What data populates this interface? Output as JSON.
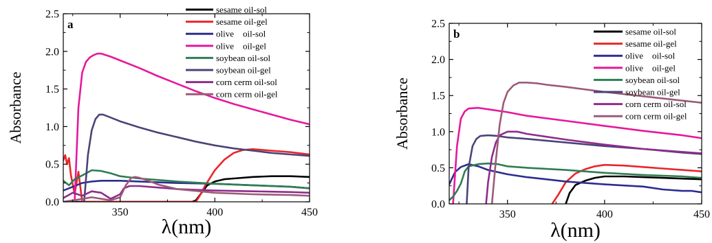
{
  "chart_data": [
    {
      "type": "line",
      "panel_label": "a",
      "xlabel": "λ(nm)",
      "ylabel": "Absorbance",
      "xlim": [
        320,
        450
      ],
      "ylim": [
        0.0,
        2.5
      ],
      "xticks": [
        350,
        400,
        450
      ],
      "yticks": [
        0.0,
        0.5,
        1.0,
        1.5,
        2.0,
        2.5
      ],
      "ytick_labels": [
        "0.0",
        "0.5",
        "1.0",
        "1.5",
        "2.0",
        "2.5"
      ],
      "grid": false,
      "legend_position": "top-right",
      "series": [
        {
          "name": "sesame oil-sol",
          "color": "#000000",
          "x": [
            320,
            388,
            390,
            393,
            396,
            400,
            405,
            410,
            420,
            430,
            440,
            450
          ],
          "y": [
            0,
            0,
            0.02,
            0.12,
            0.22,
            0.27,
            0.3,
            0.31,
            0.33,
            0.34,
            0.34,
            0.33
          ]
        },
        {
          "name": "sesame oil-gel",
          "color": "#e8262b",
          "x": [
            320,
            321,
            322,
            323,
            324,
            326,
            328,
            330,
            390,
            392,
            395,
            400,
            405,
            410,
            415,
            420,
            430,
            440,
            450
          ],
          "y": [
            0.55,
            0.62,
            0.5,
            0.58,
            0.36,
            0.1,
            0.4,
            0.0,
            0.0,
            0.08,
            0.22,
            0.42,
            0.56,
            0.65,
            0.69,
            0.7,
            0.68,
            0.66,
            0.63
          ]
        },
        {
          "name": "olive    oil-sol",
          "color": "#2b2d8e",
          "x": [
            320,
            325,
            330,
            335,
            340,
            350,
            360,
            380,
            400,
            420,
            440,
            450
          ],
          "y": [
            0.15,
            0.2,
            0.25,
            0.27,
            0.28,
            0.28,
            0.27,
            0.25,
            0.24,
            0.22,
            0.2,
            0.18
          ]
        },
        {
          "name": "olive    oil-gel",
          "color": "#e6189b",
          "x": [
            326,
            328,
            330,
            332,
            334,
            336,
            338,
            340,
            345,
            350,
            360,
            370,
            380,
            390,
            400,
            410,
            420,
            430,
            440,
            450
          ],
          "y": [
            0.0,
            1.25,
            1.72,
            1.86,
            1.92,
            1.95,
            1.97,
            1.97,
            1.93,
            1.88,
            1.78,
            1.67,
            1.57,
            1.47,
            1.38,
            1.3,
            1.23,
            1.16,
            1.09,
            1.03
          ]
        },
        {
          "name": "soybean oil-sol",
          "color": "#2f7d53",
          "x": [
            320,
            323,
            326,
            330,
            335,
            340,
            345,
            350,
            360,
            370,
            380,
            400,
            420,
            440,
            450
          ],
          "y": [
            0.28,
            0.22,
            0.3,
            0.35,
            0.42,
            0.41,
            0.38,
            0.34,
            0.31,
            0.29,
            0.27,
            0.24,
            0.22,
            0.2,
            0.18
          ]
        },
        {
          "name": "soybean oil-gel",
          "color": "#4b4377",
          "x": [
            331,
            333,
            335,
            337,
            339,
            341,
            345,
            350,
            360,
            370,
            380,
            390,
            400,
            410,
            420,
            430,
            440,
            450
          ],
          "y": [
            0.0,
            0.62,
            0.95,
            1.1,
            1.16,
            1.16,
            1.12,
            1.07,
            0.99,
            0.92,
            0.86,
            0.8,
            0.75,
            0.71,
            0.68,
            0.65,
            0.63,
            0.61
          ]
        },
        {
          "name": "corn cerm oil-sol",
          "color": "#8e2c8d",
          "x": [
            320,
            325,
            330,
            335,
            340,
            345,
            350,
            352,
            355,
            360,
            370,
            380,
            400,
            420,
            440,
            450
          ],
          "y": [
            0.05,
            0.12,
            0.08,
            0.14,
            0.12,
            0.04,
            0.1,
            0.18,
            0.21,
            0.21,
            0.19,
            0.17,
            0.15,
            0.14,
            0.13,
            0.12
          ]
        },
        {
          "name": "corn cerm oil-gel",
          "color": "#9c5a78",
          "x": [
            320,
            328,
            335,
            345,
            350,
            353,
            356,
            358,
            360,
            365,
            370,
            380,
            400,
            420,
            440,
            450
          ],
          "y": [
            0.0,
            0.03,
            0.06,
            0.02,
            0.06,
            0.22,
            0.32,
            0.33,
            0.32,
            0.28,
            0.23,
            0.17,
            0.12,
            0.1,
            0.09,
            0.08
          ]
        }
      ]
    },
    {
      "type": "line",
      "panel_label": "b",
      "xlabel": "λ(nm)",
      "ylabel": "Absorbance",
      "xlim": [
        320,
        450
      ],
      "ylim": [
        0.0,
        2.5
      ],
      "xticks": [
        350,
        400,
        450
      ],
      "yticks": [
        0.0,
        0.5,
        1.0,
        1.5,
        2.0,
        2.5
      ],
      "ytick_labels": [
        "0.0",
        "0.5",
        "1.0",
        "1.5",
        "2.0",
        "2.5"
      ],
      "grid": false,
      "legend_position": "top-right",
      "series": [
        {
          "name": "sesame oil-sol",
          "color": "#000000",
          "x": [
            380,
            382,
            385,
            390,
            395,
            400,
            410,
            420,
            430,
            440,
            450
          ],
          "y": [
            0.0,
            0.15,
            0.26,
            0.32,
            0.36,
            0.38,
            0.38,
            0.37,
            0.36,
            0.35,
            0.34
          ]
        },
        {
          "name": "sesame oil-gel",
          "color": "#e8262b",
          "x": [
            373,
            376,
            380,
            385,
            390,
            395,
            400,
            410,
            420,
            430,
            440,
            450
          ],
          "y": [
            0.0,
            0.12,
            0.3,
            0.42,
            0.48,
            0.52,
            0.54,
            0.53,
            0.51,
            0.49,
            0.47,
            0.45
          ]
        },
        {
          "name": "olive    oil-sol",
          "color": "#2b2d8e",
          "x": [
            320,
            323,
            326,
            330,
            335,
            340,
            350,
            360,
            370,
            380,
            400,
            420,
            430,
            440,
            445,
            450
          ],
          "y": [
            0.27,
            0.44,
            0.51,
            0.55,
            0.52,
            0.47,
            0.41,
            0.37,
            0.34,
            0.31,
            0.27,
            0.24,
            0.2,
            0.18,
            0.18,
            0.16
          ]
        },
        {
          "name": "olive    oil-gel",
          "color": "#e6189b",
          "x": [
            322,
            324,
            326,
            328,
            330,
            335,
            340,
            350,
            360,
            380,
            400,
            420,
            440,
            450
          ],
          "y": [
            0.0,
            0.8,
            1.18,
            1.28,
            1.32,
            1.33,
            1.31,
            1.27,
            1.22,
            1.15,
            1.08,
            1.01,
            0.95,
            0.91
          ]
        },
        {
          "name": "soybean oil-sol",
          "color": "#2f7d53",
          "x": [
            320,
            322,
            324,
            326,
            328,
            330,
            335,
            340,
            345,
            350,
            360,
            380,
            400,
            420,
            440,
            450
          ],
          "y": [
            0.05,
            0.1,
            0.18,
            0.28,
            0.45,
            0.52,
            0.55,
            0.56,
            0.55,
            0.52,
            0.5,
            0.47,
            0.43,
            0.4,
            0.38,
            0.36
          ]
        },
        {
          "name": "soybean oil-gel",
          "color": "#4b4377",
          "x": [
            329,
            330,
            332,
            334,
            336,
            340,
            345,
            350,
            360,
            380,
            400,
            420,
            440,
            450
          ],
          "y": [
            0.0,
            0.5,
            0.8,
            0.9,
            0.94,
            0.95,
            0.94,
            0.92,
            0.9,
            0.85,
            0.8,
            0.76,
            0.71,
            0.69
          ]
        },
        {
          "name": "corn cerm oil-sol",
          "color": "#8e2c8d",
          "x": [
            339,
            340,
            342,
            344,
            346,
            350,
            355,
            360,
            370,
            380,
            400,
            420,
            440,
            450
          ],
          "y": [
            0.0,
            0.3,
            0.65,
            0.85,
            0.95,
            1.0,
            1.0,
            0.97,
            0.93,
            0.89,
            0.82,
            0.76,
            0.72,
            0.7
          ]
        },
        {
          "name": "corn cerm oil-gel",
          "color": "#9c5a78",
          "x": [
            342,
            344,
            346,
            348,
            350,
            353,
            356,
            360,
            365,
            370,
            380,
            400,
            420,
            440,
            450
          ],
          "y": [
            0.0,
            0.6,
            1.1,
            1.4,
            1.55,
            1.64,
            1.68,
            1.68,
            1.67,
            1.65,
            1.62,
            1.55,
            1.49,
            1.43,
            1.4
          ]
        }
      ]
    }
  ]
}
